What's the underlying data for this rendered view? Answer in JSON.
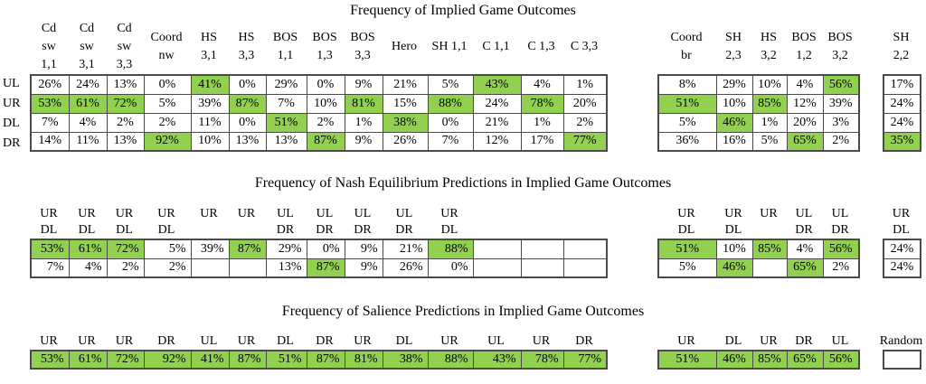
{
  "colors": {
    "highlight_green": "#92D050",
    "grid_border": "#4A4A4A",
    "cell_background": "#FFFFFF",
    "text": "#000000"
  },
  "tables": [
    {
      "title": "Frequency of Implied Game Outcomes",
      "row_labels": [
        "UL",
        "UR",
        "DL",
        "DR"
      ],
      "groups": [
        {
          "pos": "left",
          "name": "implied-left-group",
          "headers": [
            [
              "Cd",
              "sw",
              "1,1"
            ],
            [
              "Cd",
              "sw",
              "3,1"
            ],
            [
              "Cd",
              "sw",
              "3,3"
            ],
            [
              "Coord",
              "nw"
            ],
            [
              "HS",
              "3,1"
            ],
            [
              "HS",
              "3,3"
            ],
            [
              "BOS",
              "1,1"
            ],
            [
              "BOS",
              "1,3"
            ],
            [
              "BOS",
              "3,3"
            ],
            [
              "Hero"
            ],
            [
              "SH 1,1"
            ],
            [
              "C 1,1"
            ],
            [
              "C 1,3"
            ],
            [
              "C 3,3"
            ]
          ],
          "rows": [
            [
              {
                "t": "26%"
              },
              {
                "t": "24%"
              },
              {
                "t": "13%"
              },
              {
                "t": "0%"
              },
              {
                "t": "41%",
                "h": true
              },
              {
                "t": "0%"
              },
              {
                "t": "29%"
              },
              {
                "t": "0%"
              },
              {
                "t": "9%"
              },
              {
                "t": "21%"
              },
              {
                "t": "5%"
              },
              {
                "t": "43%",
                "h": true
              },
              {
                "t": "4%"
              },
              {
                "t": "1%"
              }
            ],
            [
              {
                "t": "53%",
                "h": true
              },
              {
                "t": "61%",
                "h": true
              },
              {
                "t": "72%",
                "h": true
              },
              {
                "t": "5%"
              },
              {
                "t": "39%"
              },
              {
                "t": "87%",
                "h": true
              },
              {
                "t": "7%"
              },
              {
                "t": "10%"
              },
              {
                "t": "81%",
                "h": true
              },
              {
                "t": "15%"
              },
              {
                "t": "88%",
                "h": true
              },
              {
                "t": "24%"
              },
              {
                "t": "78%",
                "h": true
              },
              {
                "t": "20%"
              }
            ],
            [
              {
                "t": "7%"
              },
              {
                "t": "4%"
              },
              {
                "t": "2%"
              },
              {
                "t": "2%"
              },
              {
                "t": "11%"
              },
              {
                "t": "0%"
              },
              {
                "t": "51%",
                "h": true
              },
              {
                "t": "2%"
              },
              {
                "t": "1%"
              },
              {
                "t": "38%",
                "h": true
              },
              {
                "t": "0%"
              },
              {
                "t": "21%"
              },
              {
                "t": "1%"
              },
              {
                "t": "2%"
              }
            ],
            [
              {
                "t": "14%"
              },
              {
                "t": "11%"
              },
              {
                "t": "13%"
              },
              {
                "t": "92%",
                "h": true
              },
              {
                "t": "10%"
              },
              {
                "t": "13%"
              },
              {
                "t": "13%"
              },
              {
                "t": "87%",
                "h": true
              },
              {
                "t": "9%"
              },
              {
                "t": "26%"
              },
              {
                "t": "7%"
              },
              {
                "t": "12%"
              },
              {
                "t": "17%"
              },
              {
                "t": "77%",
                "h": true
              }
            ]
          ]
        },
        {
          "pos": "right",
          "name": "implied-right-group",
          "headers": [
            [
              "Coord",
              "br"
            ],
            [
              "SH",
              "2,3"
            ],
            [
              "HS",
              "3,2"
            ],
            [
              "BOS",
              "1,2"
            ],
            [
              "BOS",
              "3,2"
            ]
          ],
          "rows": [
            [
              {
                "t": "8%"
              },
              {
                "t": "29%"
              },
              {
                "t": "10%"
              },
              {
                "t": "4%"
              },
              {
                "t": "56%",
                "h": true
              }
            ],
            [
              {
                "t": "51%",
                "h": true
              },
              {
                "t": "10%"
              },
              {
                "t": "85%",
                "h": true
              },
              {
                "t": "12%"
              },
              {
                "t": "39%"
              }
            ],
            [
              {
                "t": "5%"
              },
              {
                "t": "46%",
                "h": true
              },
              {
                "t": "1%"
              },
              {
                "t": "20%"
              },
              {
                "t": "3%"
              }
            ],
            [
              {
                "t": "36%"
              },
              {
                "t": "16%"
              },
              {
                "t": "5%"
              },
              {
                "t": "65%",
                "h": true
              },
              {
                "t": "2%"
              }
            ]
          ]
        },
        {
          "pos": "single",
          "name": "implied-single-column",
          "headers": [
            [
              "SH",
              "2,2"
            ]
          ],
          "rows": [
            [
              {
                "t": "17%"
              }
            ],
            [
              {
                "t": "24%"
              }
            ],
            [
              {
                "t": "24%"
              }
            ],
            [
              {
                "t": "35%",
                "h": true
              }
            ]
          ]
        }
      ]
    },
    {
      "title": "Frequency of Nash Equilibrium Predictions in Implied Game Outcomes",
      "row_labels": [],
      "groups": [
        {
          "pos": "left",
          "name": "nash-left-group",
          "headers": [
            [
              "UR",
              "DL"
            ],
            [
              "UR",
              "DL"
            ],
            [
              "UR",
              "DL"
            ],
            [
              "UR",
              "DL"
            ],
            [
              "UR"
            ],
            [
              "UR"
            ],
            [
              "UL",
              "DR"
            ],
            [
              "UL",
              "DR"
            ],
            [
              "UL",
              "DR"
            ],
            [
              "UL",
              "DR"
            ],
            [
              "UR",
              "DL"
            ],
            [],
            [],
            []
          ],
          "rows": [
            [
              {
                "t": "53%",
                "h": true
              },
              {
                "t": "61%",
                "h": true
              },
              {
                "t": "72%",
                "h": true
              },
              {
                "t": "5%"
              },
              {
                "t": "39%"
              },
              {
                "t": "87%",
                "h": true
              },
              {
                "t": "29%"
              },
              {
                "t": "0%"
              },
              {
                "t": "9%"
              },
              {
                "t": "21%"
              },
              {
                "t": "88%",
                "h": true
              },
              {
                "t": ""
              },
              {
                "t": ""
              },
              {
                "t": ""
              }
            ],
            [
              {
                "t": "7%"
              },
              {
                "t": "4%"
              },
              {
                "t": "2%"
              },
              {
                "t": "2%"
              },
              {
                "t": ""
              },
              {
                "t": ""
              },
              {
                "t": "13%"
              },
              {
                "t": "87%",
                "h": true
              },
              {
                "t": "9%"
              },
              {
                "t": "26%"
              },
              {
                "t": "0%"
              },
              {
                "t": ""
              },
              {
                "t": ""
              },
              {
                "t": ""
              }
            ]
          ]
        },
        {
          "pos": "right",
          "name": "nash-right-group",
          "headers": [
            [
              "UR",
              "DL"
            ],
            [
              "UR",
              "DL"
            ],
            [
              "UR"
            ],
            [
              "UL",
              "DR"
            ],
            [
              "UL",
              "DR"
            ]
          ],
          "rows": [
            [
              {
                "t": "51%",
                "h": true
              },
              {
                "t": "10%"
              },
              {
                "t": "85%",
                "h": true
              },
              {
                "t": "4%"
              },
              {
                "t": "56%",
                "h": true
              }
            ],
            [
              {
                "t": "5%"
              },
              {
                "t": "46%",
                "h": true
              },
              {
                "t": ""
              },
              {
                "t": "65%",
                "h": true
              },
              {
                "t": "2%"
              }
            ]
          ]
        },
        {
          "pos": "single",
          "name": "nash-single-column",
          "headers": [
            [
              "UR",
              "DL"
            ]
          ],
          "rows": [
            [
              {
                "t": "24%"
              }
            ],
            [
              {
                "t": "24%"
              }
            ]
          ]
        }
      ]
    },
    {
      "title": "Frequency of Salience Predictions in Implied Game Outcomes",
      "row_labels": [],
      "groups": [
        {
          "pos": "left",
          "name": "salience-left-group",
          "headers": [
            [
              "UR"
            ],
            [
              "UR"
            ],
            [
              "UR"
            ],
            [
              "DR"
            ],
            [
              "UL"
            ],
            [
              "UR"
            ],
            [
              "DL"
            ],
            [
              "DR"
            ],
            [
              "UR"
            ],
            [
              "DL"
            ],
            [
              "UR"
            ],
            [
              "UL"
            ],
            [
              "UR"
            ],
            [
              "DR"
            ]
          ],
          "rows": [
            [
              {
                "t": "53%",
                "h": true
              },
              {
                "t": "61%",
                "h": true
              },
              {
                "t": "72%",
                "h": true
              },
              {
                "t": "92%",
                "h": true
              },
              {
                "t": "41%",
                "h": true
              },
              {
                "t": "87%",
                "h": true
              },
              {
                "t": "51%",
                "h": true
              },
              {
                "t": "87%",
                "h": true
              },
              {
                "t": "81%",
                "h": true
              },
              {
                "t": "38%",
                "h": true
              },
              {
                "t": "88%",
                "h": true
              },
              {
                "t": "43%",
                "h": true
              },
              {
                "t": "78%",
                "h": true
              },
              {
                "t": "77%",
                "h": true
              }
            ]
          ]
        },
        {
          "pos": "right",
          "name": "salience-right-group",
          "headers": [
            [
              "UR"
            ],
            [
              "DL"
            ],
            [
              "UR"
            ],
            [
              "DR"
            ],
            [
              "UL"
            ]
          ],
          "rows": [
            [
              {
                "t": "51%",
                "h": true
              },
              {
                "t": "46%",
                "h": true
              },
              {
                "t": "85%",
                "h": true
              },
              {
                "t": "65%",
                "h": true
              },
              {
                "t": "56%",
                "h": true
              }
            ]
          ]
        },
        {
          "pos": "single",
          "name": "salience-single-column",
          "headers": [
            [
              "Random"
            ]
          ],
          "rows": [
            [
              {
                "t": ""
              }
            ]
          ]
        }
      ]
    }
  ]
}
